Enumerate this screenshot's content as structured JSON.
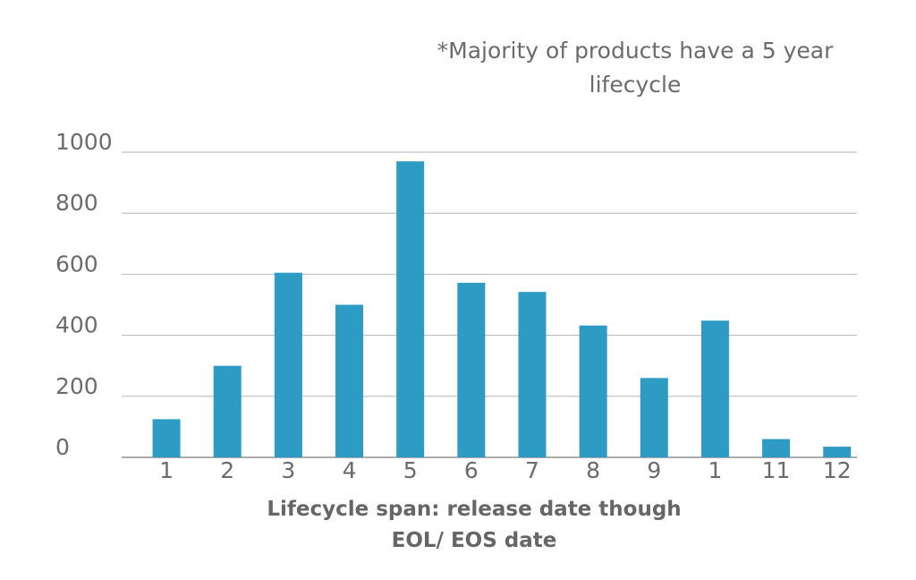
{
  "chart_data": {
    "type": "bar",
    "title": "",
    "annotation": [
      "*Majority of products have a 5 year",
      "lifecycle"
    ],
    "xlabel": [
      "Lifecycle span: release date though",
      "EOL/ EOS date"
    ],
    "ylabel": "",
    "categories": [
      "1",
      "2",
      "3",
      "4",
      "5",
      "6",
      "7",
      "8",
      "9",
      "1",
      "11",
      "12"
    ],
    "values": [
      125,
      300,
      605,
      500,
      970,
      572,
      542,
      432,
      260,
      448,
      60,
      35
    ],
    "yticks": [
      "0",
      "200",
      "400",
      "600",
      "800",
      "1000"
    ],
    "ylim": [
      0,
      1000
    ],
    "grid": true,
    "bar_color": "#2e9bc4"
  }
}
